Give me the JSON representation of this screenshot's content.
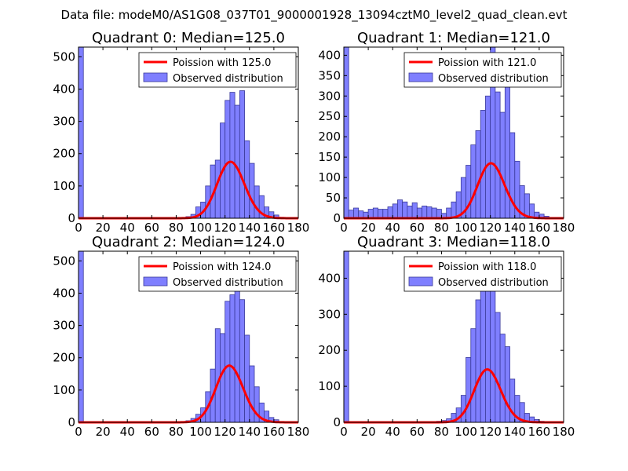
{
  "figure": {
    "suptitle": "Data file: modeM0/AS1G08_037T01_9000001928_13094cztM0_level2_quad_clean.evt"
  },
  "chart_data": [
    {
      "type": "bar",
      "title": "Quadrant 0: Median=125.0",
      "xlim": [
        0,
        180
      ],
      "ylim": [
        0,
        530
      ],
      "xticks": [
        0,
        20,
        40,
        60,
        80,
        100,
        120,
        140,
        160,
        180
      ],
      "yticks": [
        0,
        100,
        200,
        300,
        400,
        500
      ],
      "bin_width": 4,
      "legend": [
        "Poission with 125.0",
        "Observed distribution"
      ],
      "poisson_mean": 125.0,
      "poisson_scale": 4900,
      "bins": [
        {
          "x": 0,
          "y": 530
        },
        {
          "x": 88,
          "y": 5
        },
        {
          "x": 92,
          "y": 12
        },
        {
          "x": 96,
          "y": 35
        },
        {
          "x": 100,
          "y": 50
        },
        {
          "x": 104,
          "y": 100
        },
        {
          "x": 108,
          "y": 165
        },
        {
          "x": 112,
          "y": 180
        },
        {
          "x": 116,
          "y": 295
        },
        {
          "x": 120,
          "y": 365
        },
        {
          "x": 124,
          "y": 390
        },
        {
          "x": 128,
          "y": 350
        },
        {
          "x": 132,
          "y": 395
        },
        {
          "x": 136,
          "y": 240
        },
        {
          "x": 140,
          "y": 170
        },
        {
          "x": 144,
          "y": 100
        },
        {
          "x": 148,
          "y": 70
        },
        {
          "x": 152,
          "y": 35
        },
        {
          "x": 156,
          "y": 20
        },
        {
          "x": 160,
          "y": 10
        },
        {
          "x": 164,
          "y": 3
        }
      ]
    },
    {
      "type": "bar",
      "title": "Quadrant 1: Median=121.0",
      "xlim": [
        0,
        180
      ],
      "ylim": [
        0,
        420
      ],
      "xticks": [
        0,
        20,
        40,
        60,
        80,
        100,
        120,
        140,
        160,
        180
      ],
      "yticks": [
        0,
        50,
        100,
        150,
        200,
        250,
        300,
        350,
        400
      ],
      "bin_width": 4,
      "legend": [
        "Poission with 121.0",
        "Observed distribution"
      ],
      "poisson_mean": 121.0,
      "poisson_scale": 3720,
      "bins": [
        {
          "x": 0,
          "y": 420
        },
        {
          "x": 4,
          "y": 20
        },
        {
          "x": 8,
          "y": 25
        },
        {
          "x": 12,
          "y": 18
        },
        {
          "x": 16,
          "y": 15
        },
        {
          "x": 20,
          "y": 22
        },
        {
          "x": 24,
          "y": 25
        },
        {
          "x": 28,
          "y": 22
        },
        {
          "x": 32,
          "y": 22
        },
        {
          "x": 36,
          "y": 28
        },
        {
          "x": 40,
          "y": 35
        },
        {
          "x": 44,
          "y": 45
        },
        {
          "x": 48,
          "y": 40
        },
        {
          "x": 52,
          "y": 30
        },
        {
          "x": 56,
          "y": 38
        },
        {
          "x": 60,
          "y": 25
        },
        {
          "x": 64,
          "y": 30
        },
        {
          "x": 68,
          "y": 28
        },
        {
          "x": 72,
          "y": 25
        },
        {
          "x": 76,
          "y": 22
        },
        {
          "x": 80,
          "y": 12
        },
        {
          "x": 84,
          "y": 25
        },
        {
          "x": 88,
          "y": 40
        },
        {
          "x": 92,
          "y": 65
        },
        {
          "x": 96,
          "y": 100
        },
        {
          "x": 100,
          "y": 130
        },
        {
          "x": 104,
          "y": 180
        },
        {
          "x": 108,
          "y": 215
        },
        {
          "x": 112,
          "y": 265
        },
        {
          "x": 116,
          "y": 300
        },
        {
          "x": 120,
          "y": 420
        },
        {
          "x": 124,
          "y": 310
        },
        {
          "x": 128,
          "y": 260
        },
        {
          "x": 132,
          "y": 330
        },
        {
          "x": 136,
          "y": 210
        },
        {
          "x": 140,
          "y": 140
        },
        {
          "x": 144,
          "y": 80
        },
        {
          "x": 148,
          "y": 60
        },
        {
          "x": 152,
          "y": 35
        },
        {
          "x": 156,
          "y": 15
        },
        {
          "x": 160,
          "y": 10
        },
        {
          "x": 164,
          "y": 5
        }
      ]
    },
    {
      "type": "bar",
      "title": "Quadrant 2: Median=124.0",
      "xlim": [
        0,
        180
      ],
      "ylim": [
        0,
        530
      ],
      "xticks": [
        0,
        20,
        40,
        60,
        80,
        100,
        120,
        140,
        160,
        180
      ],
      "yticks": [
        0,
        100,
        200,
        300,
        400,
        500
      ],
      "bin_width": 4,
      "legend": [
        "Poission with 124.0",
        "Observed distribution"
      ],
      "poisson_mean": 124.0,
      "poisson_scale": 4900,
      "bins": [
        {
          "x": 0,
          "y": 530
        },
        {
          "x": 88,
          "y": 5
        },
        {
          "x": 92,
          "y": 12
        },
        {
          "x": 96,
          "y": 25
        },
        {
          "x": 100,
          "y": 45
        },
        {
          "x": 104,
          "y": 95
        },
        {
          "x": 108,
          "y": 165
        },
        {
          "x": 112,
          "y": 290
        },
        {
          "x": 116,
          "y": 275
        },
        {
          "x": 120,
          "y": 375
        },
        {
          "x": 124,
          "y": 395
        },
        {
          "x": 128,
          "y": 410
        },
        {
          "x": 132,
          "y": 380
        },
        {
          "x": 136,
          "y": 270
        },
        {
          "x": 140,
          "y": 175
        },
        {
          "x": 144,
          "y": 110
        },
        {
          "x": 148,
          "y": 60
        },
        {
          "x": 152,
          "y": 35
        },
        {
          "x": 156,
          "y": 15
        },
        {
          "x": 160,
          "y": 8
        }
      ]
    },
    {
      "type": "bar",
      "title": "Quadrant 3: Median=118.0",
      "xlim": [
        0,
        180
      ],
      "ylim": [
        0,
        475
      ],
      "xticks": [
        0,
        20,
        40,
        60,
        80,
        100,
        120,
        140,
        160,
        180
      ],
      "yticks": [
        0,
        100,
        200,
        300,
        400
      ],
      "bin_width": 4,
      "legend": [
        "Poission with 118.0",
        "Observed distribution"
      ],
      "poisson_mean": 118.0,
      "poisson_scale": 4000,
      "bins": [
        {
          "x": 0,
          "y": 475
        },
        {
          "x": 76,
          "y": 3
        },
        {
          "x": 80,
          "y": 5
        },
        {
          "x": 84,
          "y": 10
        },
        {
          "x": 88,
          "y": 25
        },
        {
          "x": 92,
          "y": 40
        },
        {
          "x": 96,
          "y": 75
        },
        {
          "x": 100,
          "y": 180
        },
        {
          "x": 104,
          "y": 260
        },
        {
          "x": 108,
          "y": 340
        },
        {
          "x": 112,
          "y": 375
        },
        {
          "x": 116,
          "y": 420
        },
        {
          "x": 120,
          "y": 385
        },
        {
          "x": 124,
          "y": 305
        },
        {
          "x": 128,
          "y": 245
        },
        {
          "x": 132,
          "y": 210
        },
        {
          "x": 136,
          "y": 120
        },
        {
          "x": 140,
          "y": 75
        },
        {
          "x": 144,
          "y": 55
        },
        {
          "x": 148,
          "y": 25
        },
        {
          "x": 152,
          "y": 15
        },
        {
          "x": 156,
          "y": 8
        },
        {
          "x": 160,
          "y": 3
        }
      ]
    }
  ]
}
